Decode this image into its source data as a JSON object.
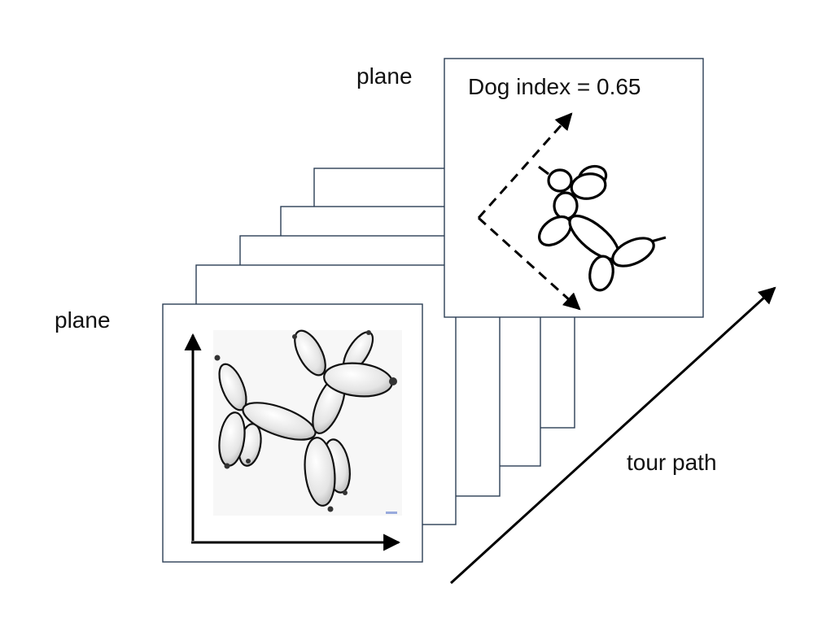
{
  "labels": {
    "plane_top": "plane",
    "plane_left": "plane",
    "dog_index": "Dog index = 0.65",
    "tour_path": "tour path"
  },
  "colors": {
    "frame_stroke": "#2c3e55",
    "arrow": "#000000",
    "balloon_fill": "#ececec",
    "balloon_outline": "#111111"
  },
  "icons": {
    "front_image": "balloon-dog-icon",
    "back_image": "balloon-dog-outline-icon"
  }
}
